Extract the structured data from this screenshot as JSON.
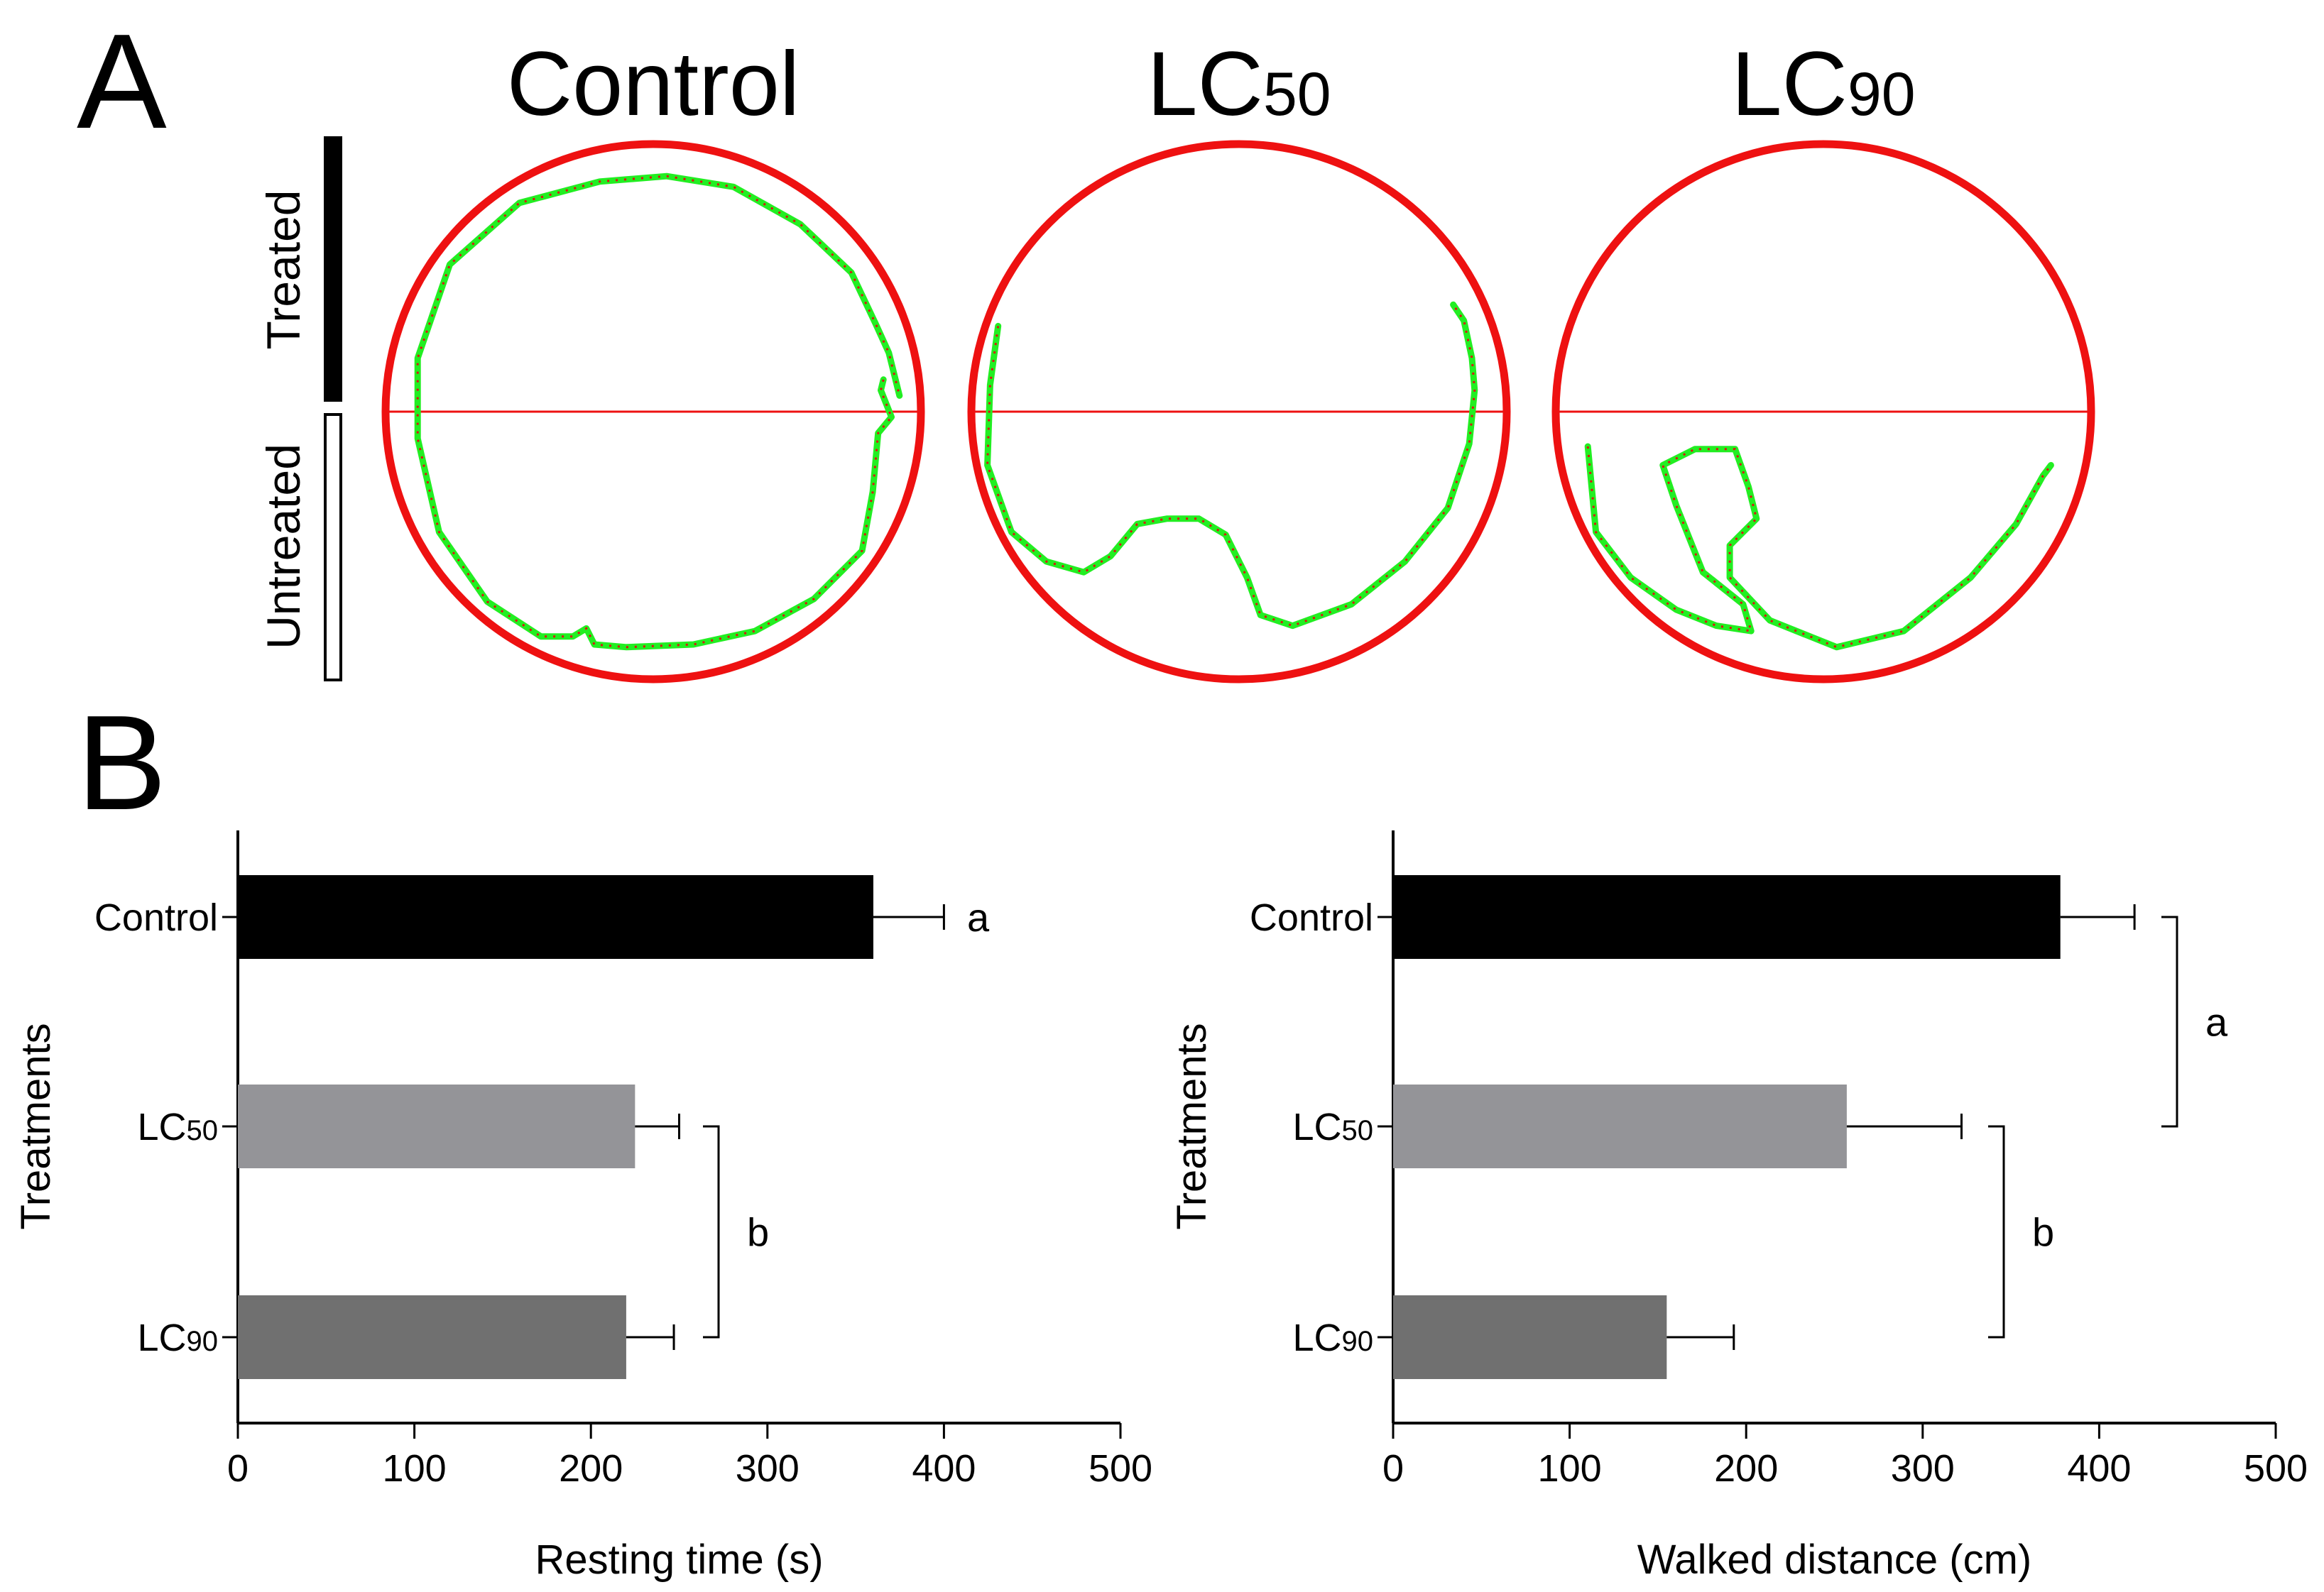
{
  "panels": {
    "a": {
      "letter": "A",
      "arenas": [
        {
          "title": "Control",
          "title_sub": ""
        },
        {
          "title": "LC",
          "title_sub": "50"
        },
        {
          "title": "LC",
          "title_sub": "90"
        }
      ],
      "zones": {
        "top": "Treated",
        "bottom": "Untreated"
      },
      "colors": {
        "arena": "#ee1111",
        "track": "#22ee22",
        "track_dots": "#dd1111",
        "treated_bar": "#000000"
      }
    },
    "b": {
      "letter": "B"
    }
  },
  "chart_data": [
    {
      "type": "bar",
      "orientation": "horizontal",
      "categories": [
        {
          "main": "Control",
          "sub": ""
        },
        {
          "main": "LC",
          "sub": "50"
        },
        {
          "main": "LC",
          "sub": "90"
        }
      ],
      "values": [
        360,
        225,
        220
      ],
      "errors": [
        40,
        25,
        27
      ],
      "colors": [
        "#000000",
        "#949498",
        "#707070"
      ],
      "xlabel": "Resting time (s)",
      "ylabel": "Treatments",
      "xlim": [
        0,
        500
      ],
      "xticks": [
        "0",
        "100",
        "200",
        "300",
        "400",
        "500"
      ],
      "significance": [
        {
          "label": "a",
          "categories": [
            0
          ],
          "bracket": false
        },
        {
          "label": "b",
          "categories": [
            1,
            2
          ],
          "bracket": true
        }
      ],
      "grid": false
    },
    {
      "type": "bar",
      "orientation": "horizontal",
      "categories": [
        {
          "main": "Control",
          "sub": ""
        },
        {
          "main": "LC",
          "sub": "50"
        },
        {
          "main": "LC",
          "sub": "90"
        }
      ],
      "values": [
        378,
        257,
        155
      ],
      "errors": [
        42,
        65,
        38
      ],
      "colors": [
        "#000000",
        "#949498",
        "#707070"
      ],
      "xlabel": "Walked distance (cm)",
      "ylabel": "Treatments",
      "xlim": [
        0,
        500
      ],
      "xticks": [
        "0",
        "100",
        "200",
        "300",
        "400",
        "500"
      ],
      "significance": [
        {
          "label": "a",
          "categories": [
            0,
            1
          ],
          "bracket": true
        },
        {
          "label": "b",
          "categories": [
            1,
            2
          ],
          "bracket": true
        }
      ],
      "grid": false
    }
  ]
}
